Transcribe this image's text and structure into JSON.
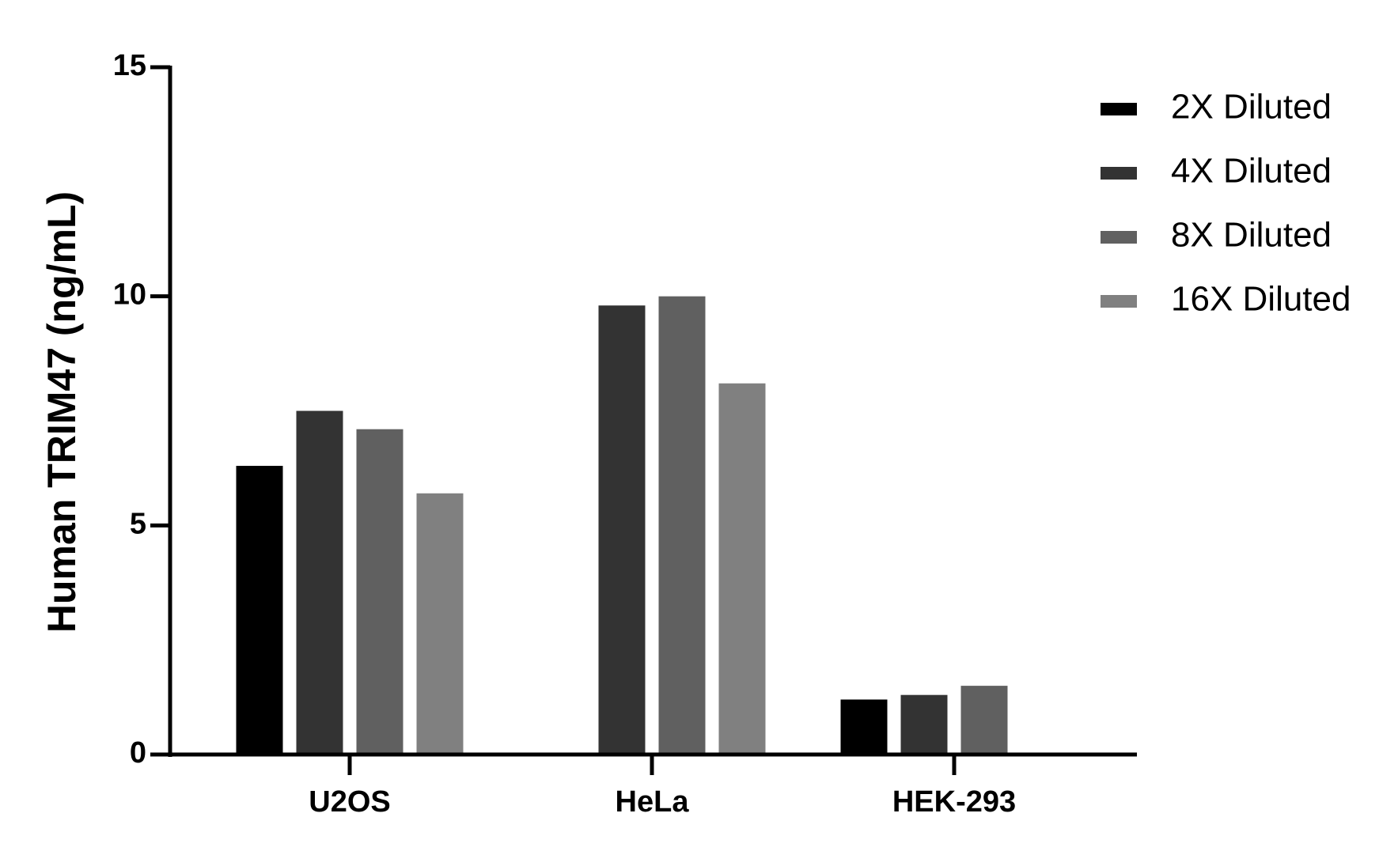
{
  "chart_data": {
    "type": "bar",
    "y_label": "Human TRIM47 (ng/mL)",
    "categories": [
      "U2OS",
      "HeLa",
      "HEK-293"
    ],
    "series": [
      {
        "name": "2X Diluted",
        "color": "#000000",
        "values": [
          6.3,
          null,
          1.2
        ]
      },
      {
        "name": "4X Diluted",
        "color": "#333333",
        "values": [
          7.5,
          9.8,
          1.3
        ]
      },
      {
        "name": "8X Diluted",
        "color": "#606060",
        "values": [
          7.1,
          10.0,
          1.5
        ]
      },
      {
        "name": "16X Diluted",
        "color": "#808080",
        "values": [
          5.7,
          8.1,
          null
        ]
      }
    ],
    "ylim": [
      0,
      15
    ],
    "yticks": [
      0,
      5,
      10,
      15
    ],
    "legend": "right"
  }
}
